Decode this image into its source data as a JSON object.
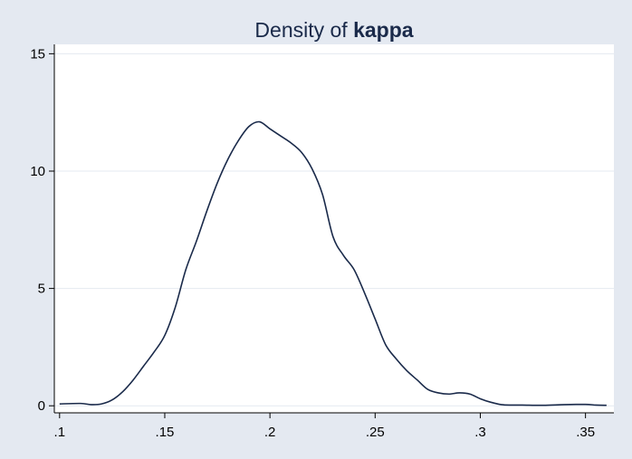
{
  "chart_data": {
    "type": "line",
    "title": {
      "prefix": "Density of ",
      "variable": "kappa"
    },
    "xlabel": "",
    "ylabel": "",
    "xlim": [
      0.0975,
      0.3635
    ],
    "ylim": [
      -0.3,
      15.4
    ],
    "x_ticks": [
      {
        "value": 0.1,
        "label": ".1"
      },
      {
        "value": 0.15,
        "label": ".15"
      },
      {
        "value": 0.2,
        "label": ".2"
      },
      {
        "value": 0.25,
        "label": ".25"
      },
      {
        "value": 0.3,
        "label": ".3"
      },
      {
        "value": 0.35,
        "label": ".35"
      }
    ],
    "y_ticks": [
      {
        "value": 0,
        "label": "0"
      },
      {
        "value": 5,
        "label": "5"
      },
      {
        "value": 10,
        "label": "10"
      },
      {
        "value": 15,
        "label": "15"
      }
    ],
    "grid": true,
    "legend": "none",
    "colors": {
      "background": "#e4e9f1",
      "plot_area": "#ffffff",
      "line": "#1a2a4a",
      "title": "#1a2a4a",
      "grid": "#e4e9f1"
    },
    "series": [
      {
        "x": [
          0.1,
          0.11,
          0.115,
          0.12,
          0.125,
          0.13,
          0.135,
          0.14,
          0.145,
          0.15,
          0.155,
          0.16,
          0.165,
          0.17,
          0.175,
          0.18,
          0.185,
          0.19,
          0.195,
          0.2,
          0.205,
          0.21,
          0.215,
          0.22,
          0.225,
          0.23,
          0.235,
          0.24,
          0.245,
          0.25,
          0.255,
          0.26,
          0.265,
          0.27,
          0.275,
          0.28,
          0.285,
          0.29,
          0.295,
          0.3,
          0.305,
          0.31,
          0.315,
          0.32,
          0.33,
          0.34,
          0.35,
          0.355,
          0.36
        ],
        "y": [
          0.08,
          0.1,
          0.05,
          0.08,
          0.25,
          0.6,
          1.1,
          1.7,
          2.3,
          3.0,
          4.2,
          5.8,
          7.0,
          8.3,
          9.5,
          10.5,
          11.3,
          11.9,
          12.1,
          11.8,
          11.5,
          11.2,
          10.8,
          10.1,
          9.0,
          7.2,
          6.4,
          5.8,
          4.8,
          3.7,
          2.6,
          2.0,
          1.5,
          1.1,
          0.7,
          0.55,
          0.5,
          0.55,
          0.5,
          0.3,
          0.15,
          0.05,
          0.03,
          0.03,
          0.02,
          0.05,
          0.06,
          0.03,
          0.02
        ]
      }
    ]
  }
}
